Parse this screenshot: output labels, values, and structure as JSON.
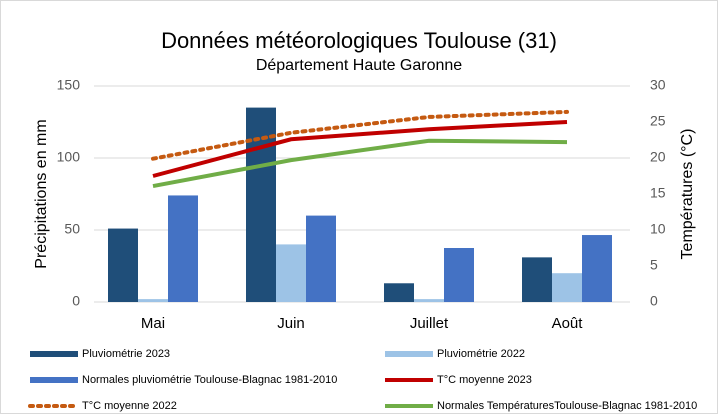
{
  "chart_data": {
    "type": "bar",
    "title": "Données météorologiques Toulouse (31)",
    "subtitle": "Département Haute Garonne",
    "y_label": "Précipitations en mm",
    "y2_label": "Températures (°C)",
    "categories": [
      "Mai",
      "Juin",
      "Juillet",
      "Août"
    ],
    "series": [
      {
        "name": "Pluviométrie 2023",
        "type": "bar",
        "color": "#1f4e79",
        "values": [
          51,
          135,
          13,
          31
        ]
      },
      {
        "name": "Pluviométrie 2022",
        "type": "bar",
        "color": "#9dc3e6",
        "values": [
          2,
          40,
          2,
          20
        ]
      },
      {
        "name": "Normales pluviométrie Toulouse-Blagnac 1981-2010",
        "type": "bar",
        "color": "#4472c4",
        "values": [
          74,
          60,
          37.5,
          46.5
        ]
      },
      {
        "name": "T°C moyenne 2023",
        "type": "line",
        "axis": "y2",
        "color": "#c00000",
        "values": [
          17.5,
          22.6,
          24,
          25
        ]
      },
      {
        "name": "T°C moyenne 2022",
        "type": "line",
        "axis": "y2",
        "dash": "dotted",
        "color": "#c55a11",
        "values": [
          19.9,
          23.5,
          25.7,
          26.4
        ]
      },
      {
        "name": "Normales TempératuresToulouse-Blagnac 1981-2010",
        "type": "line",
        "axis": "y2",
        "color": "#70ad47",
        "values": [
          16.1,
          19.7,
          22.4,
          22.2
        ]
      }
    ],
    "ylim": [
      0,
      150
    ],
    "yticks": [
      0,
      50,
      100,
      150
    ],
    "y2lim": [
      0,
      30
    ],
    "y2ticks": [
      0,
      5,
      10,
      15,
      20,
      25,
      30
    ],
    "grid": true,
    "legend": "bottom"
  }
}
